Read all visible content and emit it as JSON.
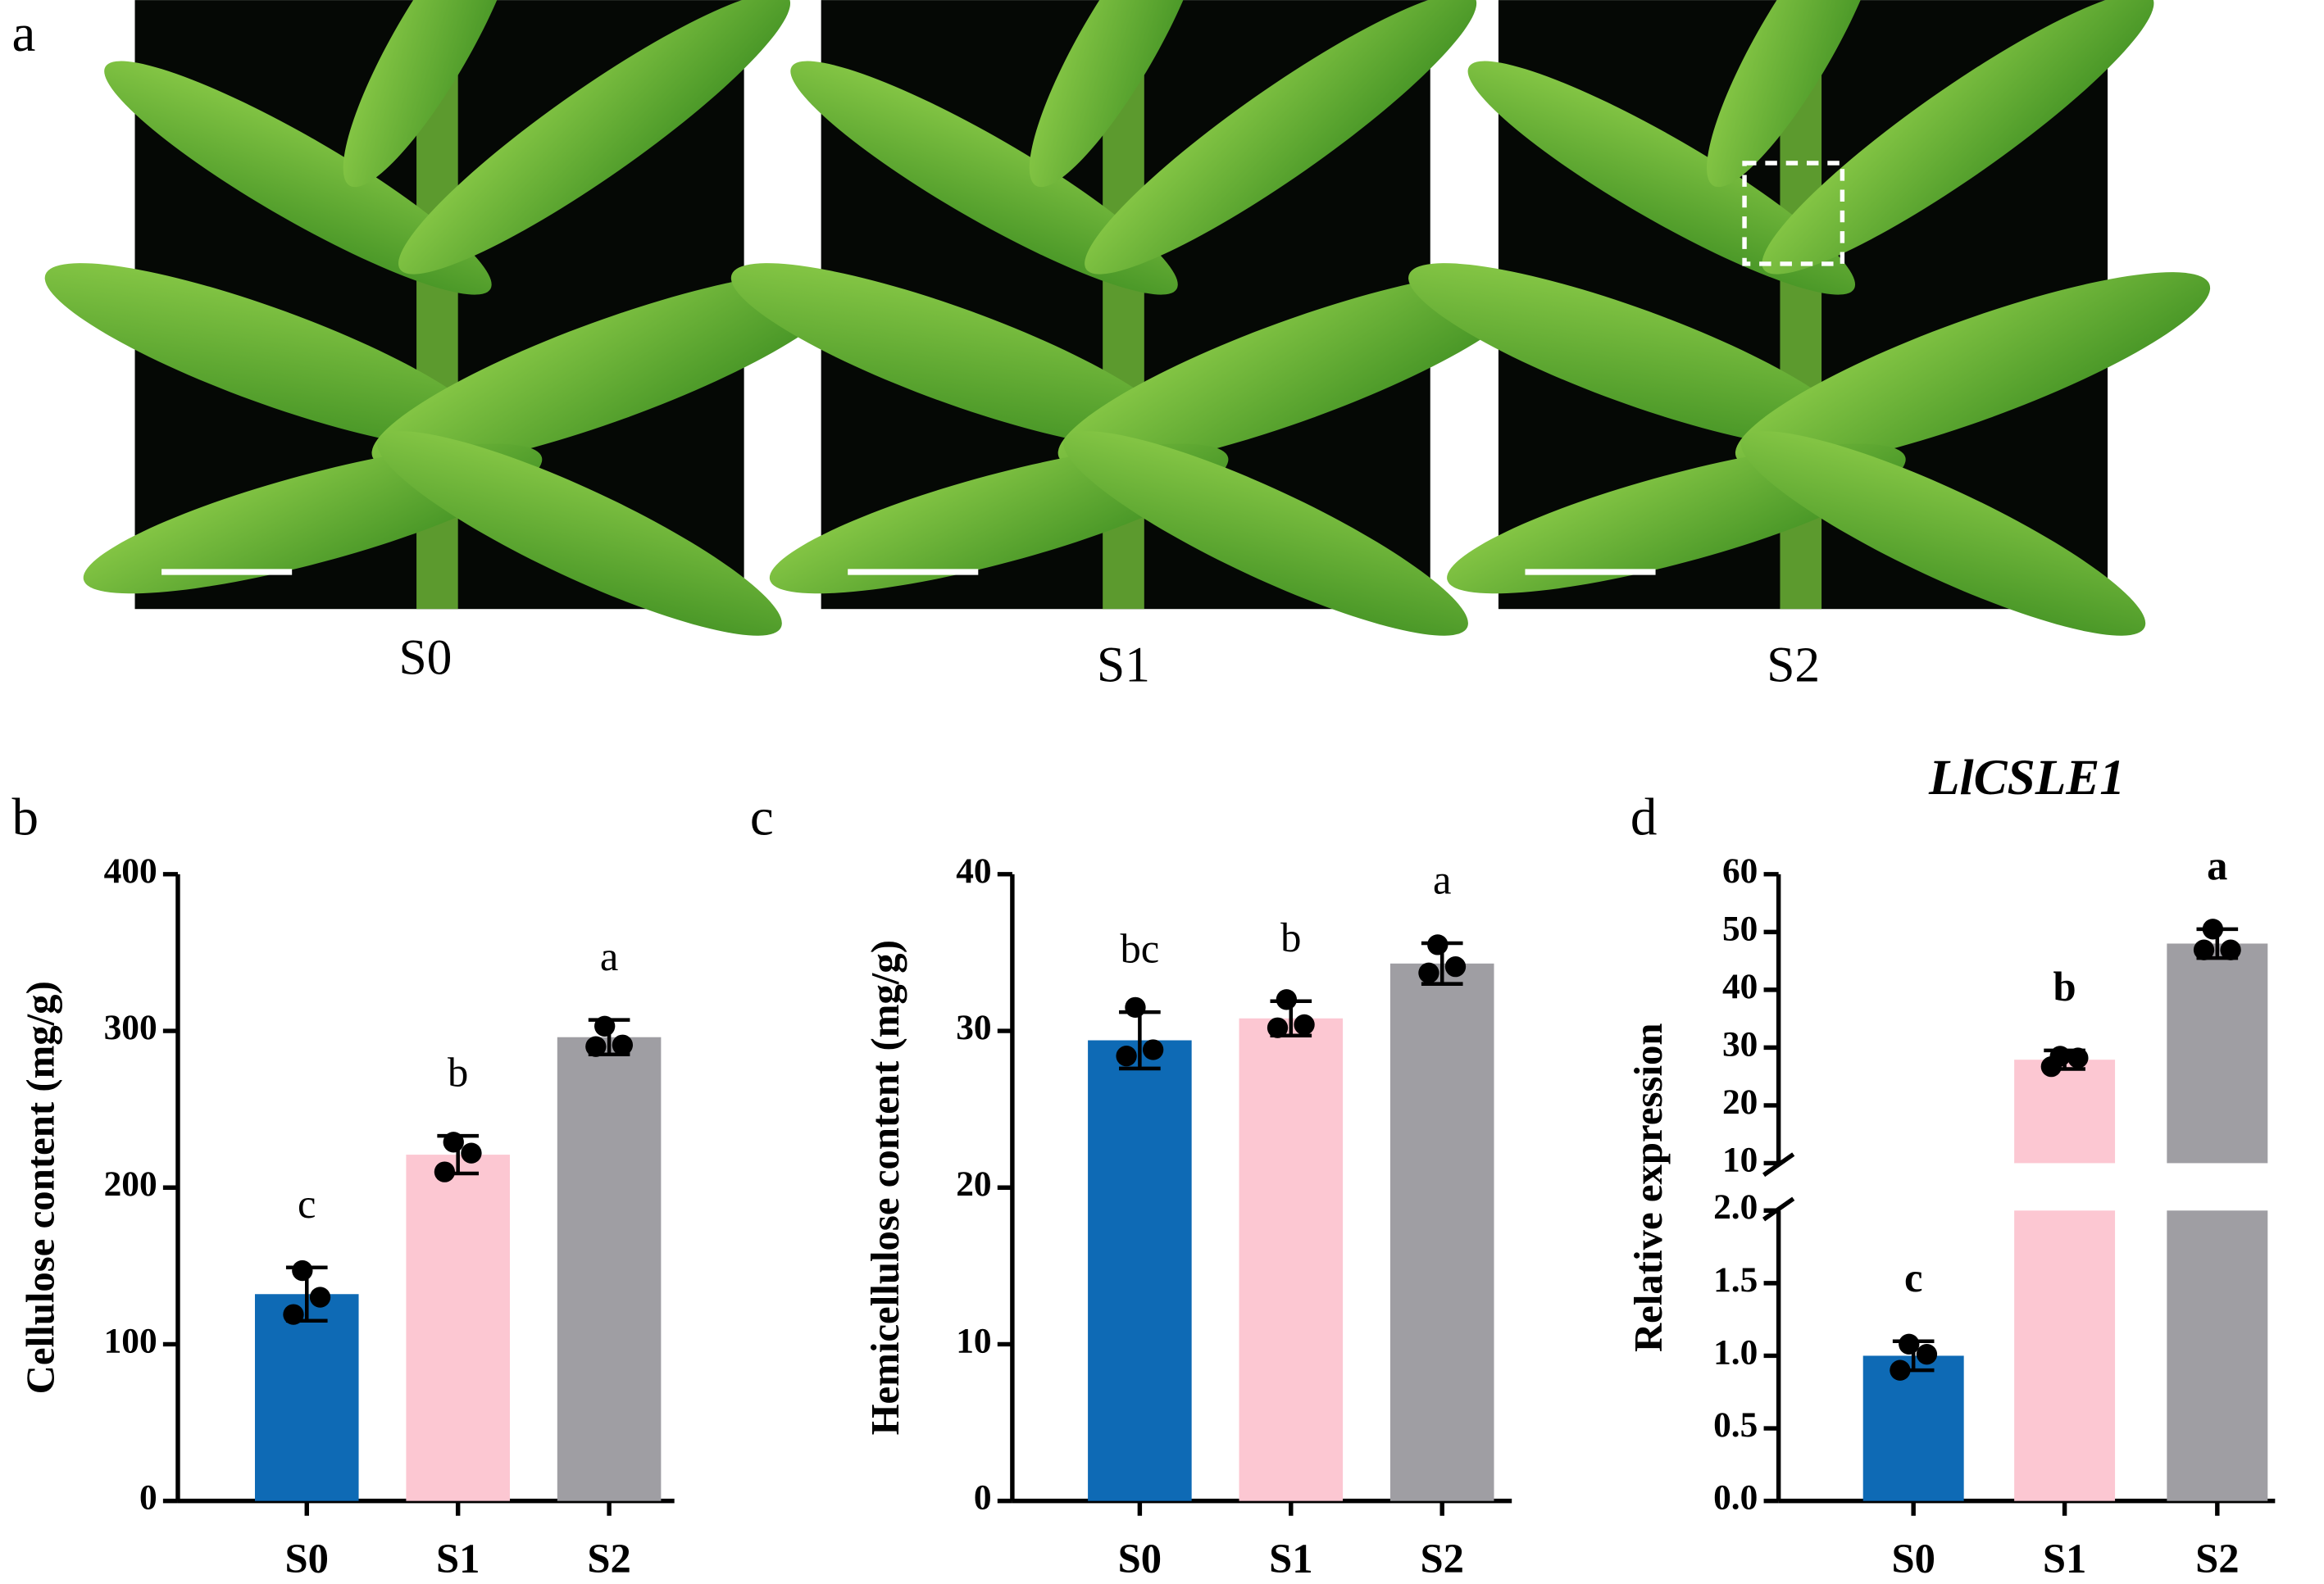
{
  "panel_labels": [
    "a",
    "b",
    "c",
    "d"
  ],
  "photos": [
    {
      "label": "S0"
    },
    {
      "label": "S1"
    },
    {
      "label": "S2"
    }
  ],
  "chart_data": [
    {
      "type": "bar",
      "ylabel": "Cellulose content (mg/g)",
      "categories": [
        "S0",
        "S1",
        "S2"
      ],
      "colors": [
        "#0e6ab5",
        "#fcc7d2",
        "#9f9ea3"
      ],
      "values": [
        132,
        221,
        296
      ],
      "errors": [
        17,
        12,
        11
      ],
      "points": [
        [
          147,
          130,
          119
        ],
        [
          229,
          222,
          210
        ],
        [
          303,
          291,
          290
        ]
      ],
      "letters": [
        "c",
        "b",
        "a"
      ],
      "ylim": [
        0,
        400
      ],
      "yticks": [
        0,
        100,
        200,
        300,
        400
      ]
    },
    {
      "type": "bar",
      "ylabel": "Hemicellulose content (mg/g)",
      "categories": [
        "S0",
        "S1",
        "S2"
      ],
      "colors": [
        "#0e6ab5",
        "#fcc7d2",
        "#9f9ea3"
      ],
      "values": [
        29.4,
        30.8,
        34.3
      ],
      "errors": [
        1.8,
        1.1,
        1.3
      ],
      "points": [
        [
          31.5,
          28.8,
          28.4
        ],
        [
          32.0,
          30.4,
          30.2
        ],
        [
          35.5,
          34.1,
          33.7
        ]
      ],
      "letters": [
        "bc",
        "b",
        "a"
      ],
      "ylim": [
        0,
        40
      ],
      "yticks": [
        0,
        10,
        20,
        30,
        40
      ]
    },
    {
      "type": "bar",
      "title": "LlCSLE1",
      "ylabel": "Relative expression",
      "categories": [
        "S0",
        "S1",
        "S2"
      ],
      "colors": [
        "#0e6ab5",
        "#fcc7d2",
        "#9f9ea3"
      ],
      "values": [
        1.0,
        27.9,
        48.0
      ],
      "errors": [
        0.1,
        1.6,
        2.5
      ],
      "points": [
        [
          1.08,
          1.01,
          0.9
        ],
        [
          28.5,
          28.2,
          26.7
        ],
        [
          50.5,
          46.9,
          46.9
        ]
      ],
      "letters": [
        "c",
        "b",
        "a"
      ],
      "ylim": [
        0,
        60
      ],
      "axis_break": [
        2,
        10
      ],
      "yticks": [
        {
          "value": 0,
          "label": "0.0"
        },
        {
          "value": 0.5,
          "label": "0.5"
        },
        {
          "value": 1,
          "label": "1.0"
        },
        {
          "value": 1.5,
          "label": "1.5"
        },
        {
          "value": 2,
          "label": "2.0"
        },
        10,
        20,
        30,
        40,
        50,
        60
      ]
    }
  ]
}
